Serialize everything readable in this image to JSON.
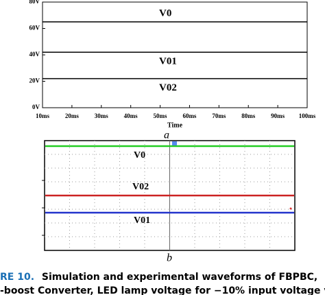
{
  "chart_data": {
    "type": "line",
    "x_label": "Time",
    "x": [
      10,
      100
    ],
    "series": [
      {
        "name": "V0",
        "color": "#000000",
        "values": [
          65,
          65
        ]
      },
      {
        "name": "V01",
        "color": "#000000",
        "values": [
          42,
          42
        ]
      },
      {
        "name": "V02",
        "color": "#000000",
        "values": [
          22,
          22
        ]
      }
    ],
    "xlim": [
      10,
      100
    ],
    "xticks": [
      {
        "value": 10,
        "label": "10ms"
      },
      {
        "value": 20,
        "label": "20ms"
      },
      {
        "value": 30,
        "label": "30ms"
      },
      {
        "value": 40,
        "label": "40ms"
      },
      {
        "value": 50,
        "label": "50ms"
      },
      {
        "value": 60,
        "label": "60ms"
      },
      {
        "value": 70,
        "label": "70ms"
      },
      {
        "value": 80,
        "label": "80ms"
      },
      {
        "value": 90,
        "label": "90ms"
      },
      {
        "value": 100,
        "label": "100ms"
      }
    ],
    "ylim": [
      0,
      80
    ],
    "yticks": [
      {
        "value": 0,
        "label": "0V"
      },
      {
        "value": 20,
        "label": "20V"
      },
      {
        "value": 40,
        "label": "40V"
      },
      {
        "value": 60,
        "label": "60V"
      },
      {
        "value": 80,
        "label": "80V"
      }
    ],
    "grid": false
  },
  "subfigure_a": "a",
  "scope": {
    "traces": [
      {
        "label": "V0"
      },
      {
        "label": "V02"
      },
      {
        "label": "V01"
      }
    ]
  },
  "subfigure_b": "b",
  "caption": {
    "label": "RE 10.",
    "line1": "Simulation and experimental waveforms of FBPBC,",
    "line2": "-boost Converter, LED lamp voltage for −10% input voltage va"
  }
}
